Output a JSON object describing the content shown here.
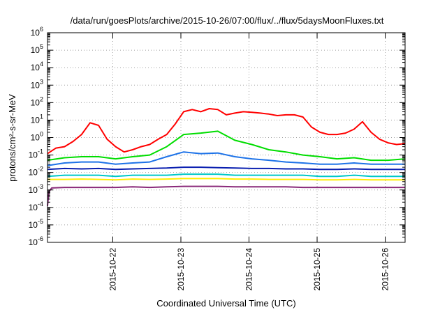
{
  "chart_data": {
    "type": "line",
    "title": "/data/run/goesPlots/archive/2015-10-26/07:00/flux/../flux/5daysMoonFluxes.txt",
    "xlabel": "Coordinated Universal Time (UTC)",
    "ylabel": "protons/cm²-s-sr-MeV",
    "yscale": "log",
    "ylim": [
      1e-06,
      1000000.0
    ],
    "xlim": [
      "2015-10-21 01:00",
      "2015-10-26 07:00"
    ],
    "grid": true,
    "x_ticks": [
      "2015-10-22",
      "2015-10-23",
      "2015-10-24",
      "2015-10-25",
      "2015-10-26"
    ],
    "y_ticks": [
      {
        "base": "10",
        "exp": "-6",
        "value": 1e-06
      },
      {
        "base": "10",
        "exp": "-5",
        "value": 1e-05
      },
      {
        "base": "10",
        "exp": "-4",
        "value": 0.0001
      },
      {
        "base": "10",
        "exp": "-3",
        "value": 0.001
      },
      {
        "base": "10",
        "exp": "-2",
        "value": 0.01
      },
      {
        "base": "10",
        "exp": "-1",
        "value": 0.1
      },
      {
        "base": "10",
        "exp": "0",
        "value": 1
      },
      {
        "base": "10",
        "exp": "1",
        "value": 10
      },
      {
        "base": "10",
        "exp": "2",
        "value": 100
      },
      {
        "base": "10",
        "exp": "3",
        "value": 1000
      },
      {
        "base": "10",
        "exp": "4",
        "value": 10000
      },
      {
        "base": "10",
        "exp": "5",
        "value": 100000
      },
      {
        "base": "10",
        "exp": "6",
        "value": 1000000
      }
    ],
    "series": [
      {
        "color": "#ff0000",
        "x": [
          "2015-10-21 01:00",
          "2015-10-21 04:00",
          "2015-10-21 07:00",
          "2015-10-21 10:00",
          "2015-10-21 13:00",
          "2015-10-21 16:00",
          "2015-10-21 19:00",
          "2015-10-21 22:00",
          "2015-10-22 01:00",
          "2015-10-22 04:00",
          "2015-10-22 07:00",
          "2015-10-22 10:00",
          "2015-10-22 13:00",
          "2015-10-22 16:00",
          "2015-10-22 19:00",
          "2015-10-22 22:00",
          "2015-10-23 01:00",
          "2015-10-23 04:00",
          "2015-10-23 07:00",
          "2015-10-23 10:00",
          "2015-10-23 13:00",
          "2015-10-23 16:00",
          "2015-10-23 19:00",
          "2015-10-23 22:00",
          "2015-10-24 01:00",
          "2015-10-24 04:00",
          "2015-10-24 07:00",
          "2015-10-24 10:00",
          "2015-10-24 13:00",
          "2015-10-24 16:00",
          "2015-10-24 19:00",
          "2015-10-24 22:00",
          "2015-10-25 01:00",
          "2015-10-25 04:00",
          "2015-10-25 07:00",
          "2015-10-25 10:00",
          "2015-10-25 13:00",
          "2015-10-25 16:00",
          "2015-10-25 19:00",
          "2015-10-25 22:00",
          "2015-10-26 01:00",
          "2015-10-26 04:00",
          "2015-10-26 07:00"
        ],
        "y": [
          0.12,
          0.25,
          0.3,
          0.6,
          1.5,
          7,
          5,
          0.8,
          0.3,
          0.15,
          0.2,
          0.3,
          0.4,
          0.8,
          1.5,
          6,
          30,
          40,
          30,
          45,
          40,
          20,
          25,
          30,
          28,
          25,
          22,
          18,
          20,
          20,
          15,
          4,
          2,
          1.5,
          1.5,
          1.8,
          3,
          8,
          2,
          0.8,
          0.5,
          0.4,
          0.45
        ]
      },
      {
        "color": "#00dd00",
        "x": [
          "2015-10-21 01:00",
          "2015-10-21 07:00",
          "2015-10-21 13:00",
          "2015-10-21 19:00",
          "2015-10-22 01:00",
          "2015-10-22 07:00",
          "2015-10-22 13:00",
          "2015-10-22 19:00",
          "2015-10-23 01:00",
          "2015-10-23 07:00",
          "2015-10-23 13:00",
          "2015-10-23 19:00",
          "2015-10-24 01:00",
          "2015-10-24 07:00",
          "2015-10-24 13:00",
          "2015-10-24 19:00",
          "2015-10-25 01:00",
          "2015-10-25 07:00",
          "2015-10-25 13:00",
          "2015-10-25 19:00",
          "2015-10-26 01:00",
          "2015-10-26 07:00"
        ],
        "y": [
          0.05,
          0.07,
          0.08,
          0.08,
          0.06,
          0.08,
          0.1,
          0.3,
          1.5,
          1.8,
          2.3,
          0.7,
          0.4,
          0.2,
          0.15,
          0.1,
          0.08,
          0.06,
          0.07,
          0.05,
          0.05,
          0.06
        ]
      },
      {
        "color": "#1e73e8",
        "x": [
          "2015-10-21 01:00",
          "2015-10-21 07:00",
          "2015-10-21 13:00",
          "2015-10-21 19:00",
          "2015-10-22 01:00",
          "2015-10-22 07:00",
          "2015-10-22 13:00",
          "2015-10-22 19:00",
          "2015-10-23 01:00",
          "2015-10-23 07:00",
          "2015-10-23 13:00",
          "2015-10-23 19:00",
          "2015-10-24 01:00",
          "2015-10-24 07:00",
          "2015-10-24 13:00",
          "2015-10-24 19:00",
          "2015-10-25 01:00",
          "2015-10-25 07:00",
          "2015-10-25 13:00",
          "2015-10-25 19:00",
          "2015-10-26 01:00",
          "2015-10-26 07:00"
        ],
        "y": [
          0.025,
          0.035,
          0.04,
          0.04,
          0.03,
          0.035,
          0.04,
          0.08,
          0.15,
          0.12,
          0.13,
          0.08,
          0.06,
          0.05,
          0.04,
          0.035,
          0.03,
          0.03,
          0.035,
          0.03,
          0.03,
          0.03
        ]
      },
      {
        "color": "#0a1fb0",
        "x": [
          "2015-10-21 01:00",
          "2015-10-21 07:00",
          "2015-10-21 13:00",
          "2015-10-21 19:00",
          "2015-10-22 01:00",
          "2015-10-22 07:00",
          "2015-10-22 13:00",
          "2015-10-22 19:00",
          "2015-10-23 01:00",
          "2015-10-23 07:00",
          "2015-10-23 13:00",
          "2015-10-23 19:00",
          "2015-10-24 01:00",
          "2015-10-24 07:00",
          "2015-10-24 13:00",
          "2015-10-24 19:00",
          "2015-10-25 01:00",
          "2015-10-25 07:00",
          "2015-10-25 13:00",
          "2015-10-25 19:00",
          "2015-10-26 01:00",
          "2015-10-26 07:00"
        ],
        "y": [
          0.015,
          0.017,
          0.016,
          0.017,
          0.015,
          0.016,
          0.017,
          0.018,
          0.02,
          0.02,
          0.019,
          0.018,
          0.017,
          0.017,
          0.016,
          0.016,
          0.015,
          0.015,
          0.016,
          0.015,
          0.015,
          0.015
        ]
      },
      {
        "color": "#00c8c8",
        "x": [
          "2015-10-21 01:00",
          "2015-10-21 07:00",
          "2015-10-21 13:00",
          "2015-10-21 19:00",
          "2015-10-22 01:00",
          "2015-10-22 07:00",
          "2015-10-22 13:00",
          "2015-10-22 19:00",
          "2015-10-23 01:00",
          "2015-10-23 07:00",
          "2015-10-23 13:00",
          "2015-10-23 19:00",
          "2015-10-24 01:00",
          "2015-10-24 07:00",
          "2015-10-24 13:00",
          "2015-10-24 19:00",
          "2015-10-25 01:00",
          "2015-10-25 07:00",
          "2015-10-25 13:00",
          "2015-10-25 19:00",
          "2015-10-26 01:00",
          "2015-10-26 07:00"
        ],
        "y": [
          0.006,
          0.007,
          0.007,
          0.007,
          0.006,
          0.007,
          0.007,
          0.007,
          0.008,
          0.008,
          0.008,
          0.007,
          0.007,
          0.007,
          0.007,
          0.007,
          0.006,
          0.006,
          0.007,
          0.006,
          0.006,
          0.006
        ]
      },
      {
        "color": "#ffee00",
        "x": [
          "2015-10-21 01:00",
          "2015-10-21 07:00",
          "2015-10-21 13:00",
          "2015-10-21 19:00",
          "2015-10-22 01:00",
          "2015-10-22 07:00",
          "2015-10-22 13:00",
          "2015-10-22 19:00",
          "2015-10-23 01:00",
          "2015-10-23 07:00",
          "2015-10-23 13:00",
          "2015-10-23 19:00",
          "2015-10-24 01:00",
          "2015-10-24 07:00",
          "2015-10-24 13:00",
          "2015-10-24 19:00",
          "2015-10-25 01:00",
          "2015-10-25 07:00",
          "2015-10-25 13:00",
          "2015-10-25 19:00",
          "2015-10-26 01:00",
          "2015-10-26 07:00"
        ],
        "y": [
          0.004,
          0.004,
          0.0042,
          0.004,
          0.0038,
          0.0042,
          0.004,
          0.0042,
          0.0045,
          0.0045,
          0.0045,
          0.0042,
          0.0042,
          0.004,
          0.004,
          0.004,
          0.0038,
          0.0038,
          0.004,
          0.0038,
          0.0038,
          0.0038
        ]
      },
      {
        "color": "#8a2a7a",
        "x": [
          "2015-10-21 01:00",
          "2015-10-21 01:30",
          "2015-10-21 02:30",
          "2015-10-21 07:00",
          "2015-10-21 13:00",
          "2015-10-21 19:00",
          "2015-10-22 01:00",
          "2015-10-22 07:00",
          "2015-10-22 13:00",
          "2015-10-22 19:00",
          "2015-10-23 01:00",
          "2015-10-23 07:00",
          "2015-10-23 13:00",
          "2015-10-23 19:00",
          "2015-10-24 01:00",
          "2015-10-24 07:00",
          "2015-10-24 13:00",
          "2015-10-24 19:00",
          "2015-10-25 01:00",
          "2015-10-25 07:00",
          "2015-10-25 13:00",
          "2015-10-25 19:00",
          "2015-10-26 01:00",
          "2015-10-26 07:00"
        ],
        "y": [
          0.00012,
          0.0008,
          0.0013,
          0.0014,
          0.0014,
          0.0014,
          0.0014,
          0.0015,
          0.0014,
          0.0015,
          0.0016,
          0.0016,
          0.0016,
          0.0015,
          0.0015,
          0.0015,
          0.0015,
          0.0014,
          0.0014,
          0.0014,
          0.0014,
          0.0014,
          0.0014,
          0.0014
        ]
      }
    ]
  }
}
